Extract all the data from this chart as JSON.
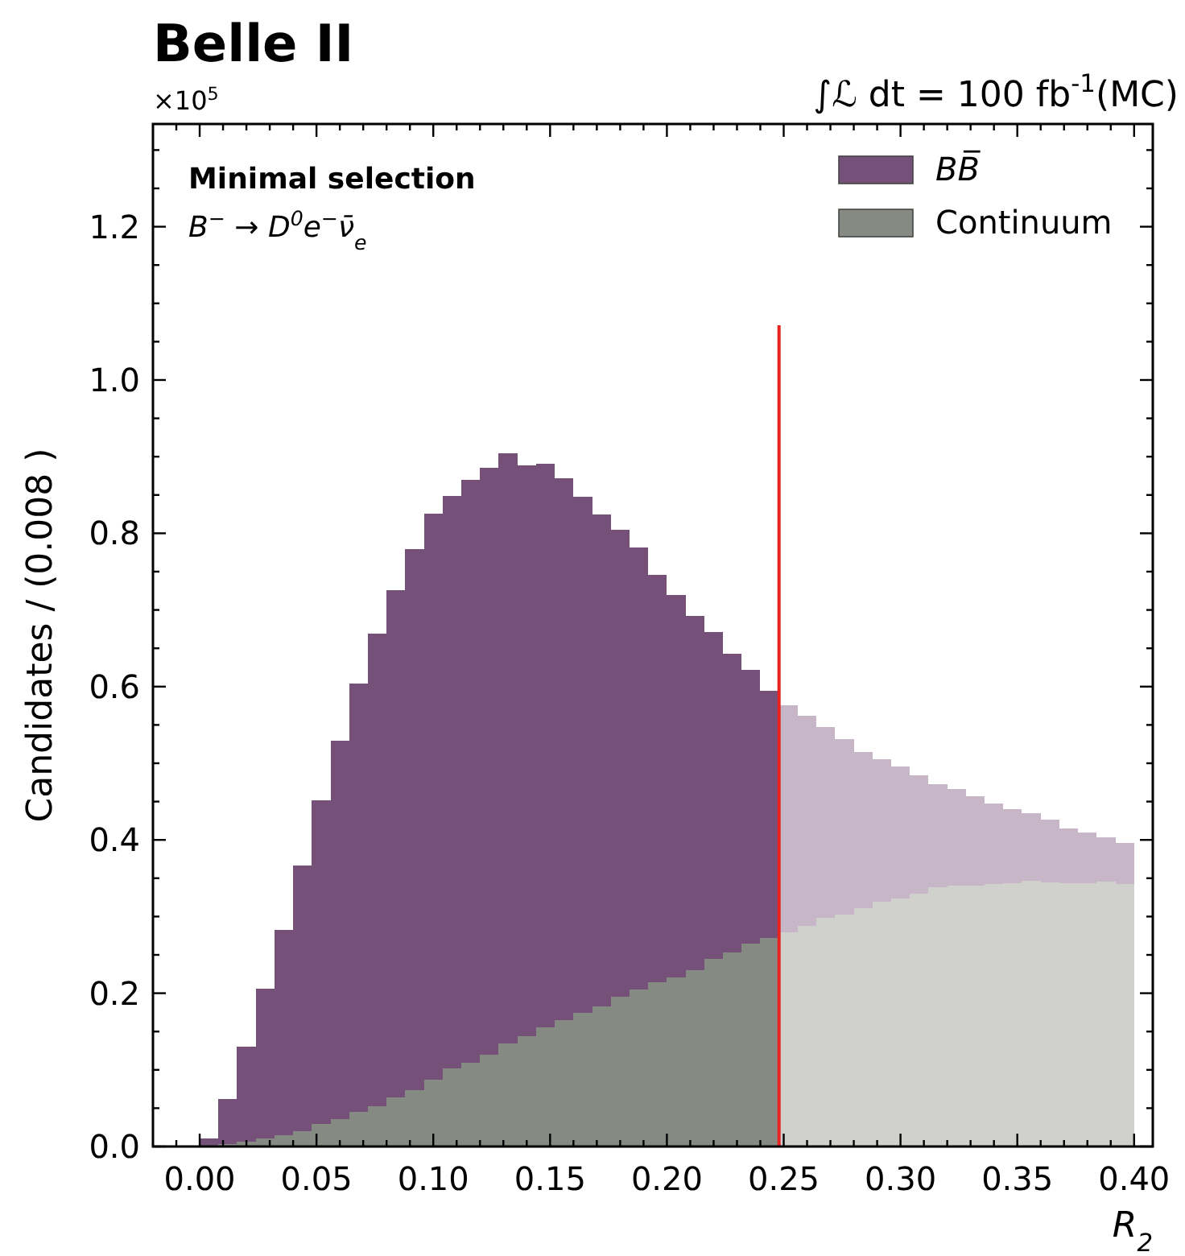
{
  "chart_data": {
    "type": "bar",
    "title": "Belle II",
    "subtitle": "∫ℒ dt = 100 fb$^{-1}$(MC)",
    "xlabel": "R$_{2}$",
    "ylabel": "Candidates / (0.008 )",
    "annotations": [
      "×10$^{5}$",
      "Minimal selection",
      "B$^{−}$ → D$^{0}$e$^{−}$ν̄$_{e}$"
    ],
    "x": [
      0.004,
      0.012,
      0.02,
      0.028,
      0.036,
      0.044,
      0.052,
      0.06,
      0.068,
      0.076,
      0.084,
      0.092,
      0.1,
      0.108,
      0.116,
      0.124,
      0.132,
      0.14,
      0.148,
      0.156,
      0.164,
      0.172,
      0.18,
      0.188,
      0.196,
      0.204,
      0.212,
      0.22,
      0.228,
      0.236,
      0.244,
      0.252,
      0.26,
      0.268,
      0.276,
      0.284,
      0.292,
      0.3,
      0.308,
      0.316,
      0.324,
      0.332,
      0.34,
      0.348,
      0.356,
      0.364,
      0.372,
      0.38,
      0.388,
      0.396
    ],
    "stacked": true,
    "series": [
      {
        "name": "Continuum",
        "color": "#858a83",
        "values": [
          0.001,
          0.003,
          0.006,
          0.01,
          0.015,
          0.02,
          0.029,
          0.036,
          0.045,
          0.053,
          0.064,
          0.074,
          0.087,
          0.102,
          0.109,
          0.12,
          0.134,
          0.144,
          0.155,
          0.165,
          0.174,
          0.183,
          0.195,
          0.205,
          0.214,
          0.221,
          0.23,
          0.245,
          0.253,
          0.265,
          0.272,
          0.279,
          0.288,
          0.298,
          0.303,
          0.311,
          0.319,
          0.324,
          0.33,
          0.338,
          0.34,
          0.34,
          0.342,
          0.344,
          0.347,
          0.345,
          0.343,
          0.344,
          0.346,
          0.342
        ],
        "colors": [
          "#858a83",
          "#858a83",
          "#858a83",
          "#858a83",
          "#858a83",
          "#858a83",
          "#858a83",
          "#858a83",
          "#858a83",
          "#858a83",
          "#858a83",
          "#858a83",
          "#858a83",
          "#858a83",
          "#858a83",
          "#858a83",
          "#858a83",
          "#858a83",
          "#858a83",
          "#858a83",
          "#858a83",
          "#858a83",
          "#858a83",
          "#858a83",
          "#858a83",
          "#858a83",
          "#858a83",
          "#858a83",
          "#858a83",
          "#858a83",
          "#858a83",
          "#d0d0cd",
          "#d0d0cd",
          "#d0d0cd",
          "#d0d0cd",
          "#d0d0cd",
          "#d0d0cd",
          "#d0d0cd",
          "#d0d0cd",
          "#d0d0cd",
          "#d0d0cd",
          "#d0d0cd",
          "#d0d0cd",
          "#d0d0cd",
          "#d0d0cd",
          "#d0d0cd",
          "#d0d0cd",
          "#d0d0cd",
          "#d0d0cd",
          "#d0d0cd"
        ]
      },
      {
        "name": "BB̅",
        "color": "#755079",
        "values": [
          0.01,
          0.059,
          0.124,
          0.196,
          0.268,
          0.347,
          0.423,
          0.493,
          0.559,
          0.616,
          0.662,
          0.705,
          0.739,
          0.747,
          0.761,
          0.765,
          0.77,
          0.745,
          0.736,
          0.707,
          0.674,
          0.642,
          0.61,
          0.576,
          0.532,
          0.499,
          0.462,
          0.426,
          0.39,
          0.357,
          0.323,
          0.297,
          0.274,
          0.249,
          0.229,
          0.204,
          0.186,
          0.172,
          0.154,
          0.135,
          0.126,
          0.117,
          0.105,
          0.096,
          0.088,
          0.081,
          0.072,
          0.066,
          0.057,
          0.054
        ],
        "colors": [
          "#755079",
          "#755079",
          "#755079",
          "#755079",
          "#755079",
          "#755079",
          "#755079",
          "#755079",
          "#755079",
          "#755079",
          "#755079",
          "#755079",
          "#755079",
          "#755079",
          "#755079",
          "#755079",
          "#755079",
          "#755079",
          "#755079",
          "#755079",
          "#755079",
          "#755079",
          "#755079",
          "#755079",
          "#755079",
          "#755079",
          "#755079",
          "#755079",
          "#755079",
          "#755079",
          "#755079",
          "#c6b6c8",
          "#c6b6c8",
          "#c6b6c8",
          "#c6b6c8",
          "#c6b6c8",
          "#c6b6c8",
          "#c6b6c8",
          "#c6b6c8",
          "#c6b6c8",
          "#c6b6c8",
          "#c6b6c8",
          "#c6b6c8",
          "#c6b6c8",
          "#c6b6c8",
          "#c6b6c8",
          "#c6b6c8",
          "#c6b6c8",
          "#c6b6c8",
          "#c6b6c8"
        ]
      }
    ],
    "ref_lines": [
      {
        "axis": "x",
        "value": 0.248,
        "color": "#e8231f"
      }
    ],
    "xlim": [
      -0.02,
      0.408
    ],
    "xticks": [
      {
        "value": -0.01,
        "label": null
      },
      {
        "value": 0,
        "label": "0.00"
      },
      {
        "value": 0.01,
        "label": null
      },
      {
        "value": 0.02,
        "label": null
      },
      {
        "value": 0.03,
        "label": null
      },
      {
        "value": 0.04,
        "label": null
      },
      {
        "value": 0.05,
        "label": "0.05"
      },
      {
        "value": 0.06,
        "label": null
      },
      {
        "value": 0.07,
        "label": null
      },
      {
        "value": 0.08,
        "label": null
      },
      {
        "value": 0.09,
        "label": null
      },
      {
        "value": 0.1,
        "label": "0.10"
      },
      {
        "value": 0.11,
        "label": null
      },
      {
        "value": 0.12,
        "label": null
      },
      {
        "value": 0.13,
        "label": null
      },
      {
        "value": 0.14,
        "label": null
      },
      {
        "value": 0.15,
        "label": "0.15"
      },
      {
        "value": 0.16,
        "label": null
      },
      {
        "value": 0.17,
        "label": null
      },
      {
        "value": 0.18,
        "label": null
      },
      {
        "value": 0.19,
        "label": null
      },
      {
        "value": 0.2,
        "label": "0.20"
      },
      {
        "value": 0.21,
        "label": null
      },
      {
        "value": 0.22,
        "label": null
      },
      {
        "value": 0.23,
        "label": null
      },
      {
        "value": 0.24,
        "label": null
      },
      {
        "value": 0.25,
        "label": "0.25"
      },
      {
        "value": 0.26,
        "label": null
      },
      {
        "value": 0.27,
        "label": null
      },
      {
        "value": 0.28,
        "label": null
      },
      {
        "value": 0.29,
        "label": null
      },
      {
        "value": 0.3,
        "label": "0.30"
      },
      {
        "value": 0.31,
        "label": null
      },
      {
        "value": 0.32,
        "label": null
      },
      {
        "value": 0.33,
        "label": null
      },
      {
        "value": 0.34,
        "label": null
      },
      {
        "value": 0.35,
        "label": "0.35"
      },
      {
        "value": 0.36,
        "label": null
      },
      {
        "value": 0.37,
        "label": null
      },
      {
        "value": 0.38,
        "label": null
      },
      {
        "value": 0.39,
        "label": null
      },
      {
        "value": 0.4,
        "label": "0.40"
      }
    ],
    "ylim": [
      0,
      1.334
    ],
    "yticks": [
      {
        "value": 0,
        "label": "0.0"
      },
      {
        "value": 0.05,
        "label": null
      },
      {
        "value": 0.1,
        "label": null
      },
      {
        "value": 0.15,
        "label": null
      },
      {
        "value": 0.2,
        "label": "0.2"
      },
      {
        "value": 0.25,
        "label": null
      },
      {
        "value": 0.3,
        "label": null
      },
      {
        "value": 0.35,
        "label": null
      },
      {
        "value": 0.4,
        "label": "0.4"
      },
      {
        "value": 0.45,
        "label": null
      },
      {
        "value": 0.5,
        "label": null
      },
      {
        "value": 0.55,
        "label": null
      },
      {
        "value": 0.6,
        "label": "0.6"
      },
      {
        "value": 0.65,
        "label": null
      },
      {
        "value": 0.7,
        "label": null
      },
      {
        "value": 0.75,
        "label": null
      },
      {
        "value": 0.8,
        "label": "0.8"
      },
      {
        "value": 0.85,
        "label": null
      },
      {
        "value": 0.9,
        "label": null
      },
      {
        "value": 0.95,
        "label": null
      },
      {
        "value": 1.0,
        "label": "1.0"
      },
      {
        "value": 1.05,
        "label": null
      },
      {
        "value": 1.1,
        "label": null
      },
      {
        "value": 1.15,
        "label": null
      },
      {
        "value": 1.2,
        "label": "1.2"
      },
      {
        "value": 1.25,
        "label": null
      },
      {
        "value": 1.3,
        "label": null
      }
    ],
    "legend": "top right",
    "grid": false
  }
}
